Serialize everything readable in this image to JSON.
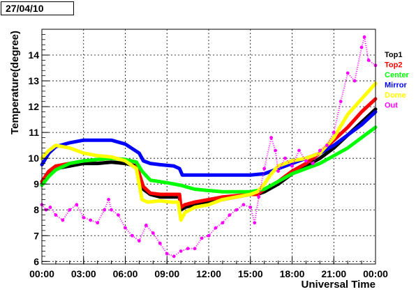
{
  "chart_data": {
    "type": "scatter",
    "date_label": "27/04/10",
    "title": "",
    "xlabel": "Universal Time",
    "ylabel": "Temperature(degree)",
    "xlim": [
      0,
      24
    ],
    "ylim": [
      5.9,
      15.0
    ],
    "x_ticks": [
      {
        "x": 0,
        "label": "00:00"
      },
      {
        "x": 3,
        "label": "03:00"
      },
      {
        "x": 6,
        "label": "06:00"
      },
      {
        "x": 9,
        "label": "09:00"
      },
      {
        "x": 12,
        "label": "12:00"
      },
      {
        "x": 15,
        "label": "15:00"
      },
      {
        "x": 18,
        "label": "18:00"
      },
      {
        "x": 21,
        "label": "21:00"
      },
      {
        "x": 24,
        "label": "00:00"
      }
    ],
    "y_ticks": [
      6,
      7,
      8,
      9,
      10,
      11,
      12,
      13,
      14
    ],
    "grid": true,
    "legend_position": "right",
    "series": [
      {
        "name": "Top1",
        "color": "#000000",
        "points": [
          [
            0,
            9.0
          ],
          [
            0.5,
            9.4
          ],
          [
            1,
            9.6
          ],
          [
            2,
            9.7
          ],
          [
            3,
            9.8
          ],
          [
            4,
            9.8
          ],
          [
            5,
            9.85
          ],
          [
            6,
            9.8
          ],
          [
            6.8,
            9.7
          ],
          [
            7.0,
            9.3
          ],
          [
            7.3,
            8.8
          ],
          [
            7.8,
            8.6
          ],
          [
            8.5,
            8.5
          ],
          [
            9.5,
            8.5
          ],
          [
            9.9,
            8.5
          ],
          [
            10.0,
            8.0
          ],
          [
            10.3,
            8.1
          ],
          [
            11,
            8.2
          ],
          [
            12,
            8.3
          ],
          [
            13,
            8.4
          ],
          [
            14,
            8.5
          ],
          [
            15,
            8.6
          ],
          [
            15.5,
            8.6
          ],
          [
            16,
            8.7
          ],
          [
            17,
            9.0
          ],
          [
            18,
            9.4
          ],
          [
            19,
            9.7
          ],
          [
            20,
            10.0
          ],
          [
            21,
            10.4
          ],
          [
            22,
            10.9
          ],
          [
            23,
            11.4
          ],
          [
            24,
            11.9
          ]
        ]
      },
      {
        "name": "Top2",
        "color": "#ff0000",
        "points": [
          [
            0,
            9.1
          ],
          [
            0.5,
            9.5
          ],
          [
            1,
            9.7
          ],
          [
            2,
            9.8
          ],
          [
            3,
            9.9
          ],
          [
            4,
            9.95
          ],
          [
            5,
            10.0
          ],
          [
            6,
            9.95
          ],
          [
            6.8,
            9.85
          ],
          [
            7.0,
            9.4
          ],
          [
            7.3,
            8.9
          ],
          [
            7.8,
            8.65
          ],
          [
            8.5,
            8.6
          ],
          [
            9.5,
            8.6
          ],
          [
            9.9,
            8.6
          ],
          [
            10.0,
            8.1
          ],
          [
            10.3,
            8.2
          ],
          [
            11,
            8.3
          ],
          [
            12,
            8.4
          ],
          [
            13,
            8.5
          ],
          [
            14,
            8.55
          ],
          [
            15,
            8.6
          ],
          [
            15.5,
            8.6
          ],
          [
            16,
            8.8
          ],
          [
            17,
            9.1
          ],
          [
            18,
            9.5
          ],
          [
            19,
            9.8
          ],
          [
            20,
            10.2
          ],
          [
            21,
            10.7
          ],
          [
            22,
            11.2
          ],
          [
            23,
            11.8
          ],
          [
            24,
            12.3
          ]
        ]
      },
      {
        "name": "Center",
        "color": "#00ff00",
        "points": [
          [
            0,
            8.95
          ],
          [
            0.5,
            9.3
          ],
          [
            1,
            9.55
          ],
          [
            2,
            9.8
          ],
          [
            3,
            9.9
          ],
          [
            4,
            9.95
          ],
          [
            5,
            10.0
          ],
          [
            6,
            9.95
          ],
          [
            6.8,
            9.85
          ],
          [
            7.2,
            9.5
          ],
          [
            7.8,
            9.15
          ],
          [
            9,
            9.05
          ],
          [
            10,
            8.95
          ],
          [
            11,
            8.8
          ],
          [
            12,
            8.75
          ],
          [
            13,
            8.7
          ],
          [
            14,
            8.7
          ],
          [
            15,
            8.7
          ],
          [
            16,
            8.8
          ],
          [
            17,
            9.1
          ],
          [
            18,
            9.4
          ],
          [
            19,
            9.6
          ],
          [
            20,
            9.8
          ],
          [
            21,
            10.1
          ],
          [
            22,
            10.4
          ],
          [
            23,
            10.8
          ],
          [
            24,
            11.2
          ]
        ]
      },
      {
        "name": "Mirror",
        "color": "#0000ff",
        "points": [
          [
            0,
            9.75
          ],
          [
            0.5,
            10.2
          ],
          [
            1,
            10.45
          ],
          [
            2,
            10.6
          ],
          [
            3,
            10.7
          ],
          [
            4,
            10.7
          ],
          [
            5,
            10.7
          ],
          [
            6,
            10.55
          ],
          [
            7,
            10.2
          ],
          [
            7.3,
            9.9
          ],
          [
            7.8,
            9.8
          ],
          [
            8.5,
            9.75
          ],
          [
            9.5,
            9.7
          ],
          [
            9.9,
            9.6
          ],
          [
            10.1,
            9.35
          ],
          [
            11,
            9.35
          ],
          [
            12,
            9.35
          ],
          [
            13,
            9.35
          ],
          [
            14,
            9.35
          ],
          [
            15,
            9.35
          ],
          [
            16,
            9.4
          ],
          [
            17,
            9.6
          ],
          [
            18,
            9.8
          ],
          [
            19,
            10.0
          ],
          [
            20,
            10.2
          ],
          [
            21,
            10.5
          ],
          [
            22,
            10.9
          ],
          [
            23,
            11.3
          ],
          [
            24,
            11.8
          ]
        ]
      },
      {
        "name": "Dome",
        "color": "#ffff00",
        "points": [
          [
            0,
            10.0
          ],
          [
            0.5,
            10.3
          ],
          [
            1,
            10.5
          ],
          [
            2,
            10.4
          ],
          [
            3,
            10.2
          ],
          [
            4,
            10.1
          ],
          [
            5,
            10.05
          ],
          [
            6,
            9.9
          ],
          [
            6.8,
            9.6
          ],
          [
            7.0,
            9.0
          ],
          [
            7.2,
            8.4
          ],
          [
            7.6,
            8.3
          ],
          [
            8.5,
            8.35
          ],
          [
            9.3,
            8.3
          ],
          [
            9.8,
            8.3
          ],
          [
            10.0,
            7.6
          ],
          [
            10.3,
            7.9
          ],
          [
            11,
            8.1
          ],
          [
            12,
            8.2
          ],
          [
            13,
            8.4
          ],
          [
            14,
            8.5
          ],
          [
            15,
            8.6
          ],
          [
            15.5,
            8.7
          ],
          [
            16,
            9.0
          ],
          [
            16.5,
            9.4
          ],
          [
            17,
            9.7
          ],
          [
            18,
            9.9
          ],
          [
            19,
            10.0
          ],
          [
            20,
            10.2
          ],
          [
            21,
            10.8
          ],
          [
            22,
            11.7
          ],
          [
            23,
            12.3
          ],
          [
            24,
            12.9
          ]
        ]
      },
      {
        "name": "Out",
        "color": "#ff00ff",
        "points": [
          [
            0,
            8.2
          ],
          [
            0.3,
            8.0
          ],
          [
            0.6,
            8.1
          ],
          [
            1,
            7.8
          ],
          [
            1.5,
            7.6
          ],
          [
            2,
            8.0
          ],
          [
            2.5,
            8.2
          ],
          [
            3,
            7.7
          ],
          [
            3.5,
            7.6
          ],
          [
            4,
            7.5
          ],
          [
            4.5,
            8.0
          ],
          [
            4.8,
            8.4
          ],
          [
            5,
            8.0
          ],
          [
            5.5,
            7.8
          ],
          [
            6,
            7.3
          ],
          [
            6.5,
            7.0
          ],
          [
            7,
            6.8
          ],
          [
            7.5,
            7.4
          ],
          [
            8,
            7.1
          ],
          [
            8.5,
            6.7
          ],
          [
            9,
            6.3
          ],
          [
            9.5,
            6.2
          ],
          [
            10,
            6.4
          ],
          [
            10.5,
            6.5
          ],
          [
            11,
            6.5
          ],
          [
            11.5,
            6.9
          ],
          [
            12,
            7.0
          ],
          [
            12.5,
            7.3
          ],
          [
            13,
            7.5
          ],
          [
            13.5,
            7.8
          ],
          [
            14,
            8.0
          ],
          [
            14.5,
            8.2
          ],
          [
            15,
            8.1
          ],
          [
            15.3,
            7.5
          ],
          [
            15.6,
            8.5
          ],
          [
            16,
            9.6
          ],
          [
            16.5,
            10.8
          ],
          [
            16.8,
            10.3
          ],
          [
            17,
            9.5
          ],
          [
            17.5,
            10.0
          ],
          [
            18,
            9.7
          ],
          [
            18.5,
            10.3
          ],
          [
            19,
            9.9
          ],
          [
            19.5,
            9.8
          ],
          [
            20,
            10.3
          ],
          [
            20.5,
            10.5
          ],
          [
            21,
            11.0
          ],
          [
            21.5,
            12.2
          ],
          [
            22,
            13.3
          ],
          [
            22.5,
            13.0
          ],
          [
            23,
            14.3
          ],
          [
            23.2,
            14.7
          ],
          [
            23.5,
            13.8
          ],
          [
            24,
            13.6
          ]
        ]
      }
    ]
  }
}
